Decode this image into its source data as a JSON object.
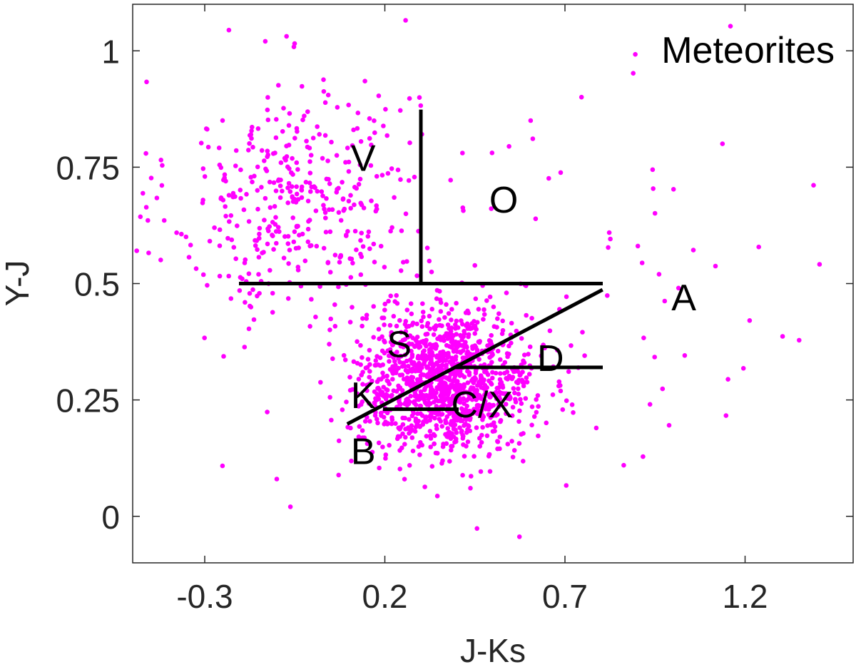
{
  "chart_data": {
    "type": "scatter",
    "title": "Meteorites",
    "xlabel": "J-Ks",
    "ylabel": "Y-J",
    "xlim": [
      -0.5,
      1.5
    ],
    "ylim": [
      -0.1,
      1.1
    ],
    "xticks": [
      -0.3,
      0.2,
      0.7,
      1.2
    ],
    "yticks": [
      0,
      0.25,
      0.5,
      0.75,
      1
    ],
    "xtick_labels": [
      "-0.3",
      "0.2",
      "0.7",
      "1.2"
    ],
    "ytick_labels": [
      "0",
      "0.25",
      "0.5",
      "0.75",
      "1"
    ],
    "grid": false,
    "point_color": "#ff00ff",
    "line_color": "#000000",
    "region_labels": [
      {
        "text": "V",
        "x": 0.14,
        "y": 0.77
      },
      {
        "text": "O",
        "x": 0.53,
        "y": 0.68
      },
      {
        "text": "A",
        "x": 1.03,
        "y": 0.47
      },
      {
        "text": "S",
        "x": 0.24,
        "y": 0.37
      },
      {
        "text": "D",
        "x": 0.66,
        "y": 0.34
      },
      {
        "text": "K",
        "x": 0.14,
        "y": 0.26
      },
      {
        "text": "C/X",
        "x": 0.47,
        "y": 0.24
      },
      {
        "text": "B",
        "x": 0.14,
        "y": 0.14
      }
    ],
    "boundary_lines": [
      {
        "x": [
          -0.2,
          0.8
        ],
        "y": [
          0.5,
          0.5
        ]
      },
      {
        "x": [
          0.3,
          0.3
        ],
        "y": [
          0.5,
          0.87
        ]
      },
      {
        "x": [
          0.1,
          0.8
        ],
        "y": [
          0.2,
          0.485
        ]
      },
      {
        "x": [
          0.4,
          0.8
        ],
        "y": [
          0.32,
          0.32
        ]
      },
      {
        "x": [
          0.2,
          0.4
        ],
        "y": [
          0.23,
          0.23
        ]
      }
    ],
    "scatter_clusters": [
      {
        "name": "upper-left cloud",
        "cx": -0.05,
        "cy": 0.68,
        "sx": 0.17,
        "sy": 0.13,
        "n": 380
      },
      {
        "name": "main cloud",
        "cx": 0.37,
        "cy": 0.29,
        "sx": 0.12,
        "sy": 0.075,
        "n": 1250
      },
      {
        "name": "outliers",
        "cx": 0.5,
        "cy": 0.5,
        "sx": 0.55,
        "sy": 0.3,
        "n": 110
      }
    ]
  }
}
